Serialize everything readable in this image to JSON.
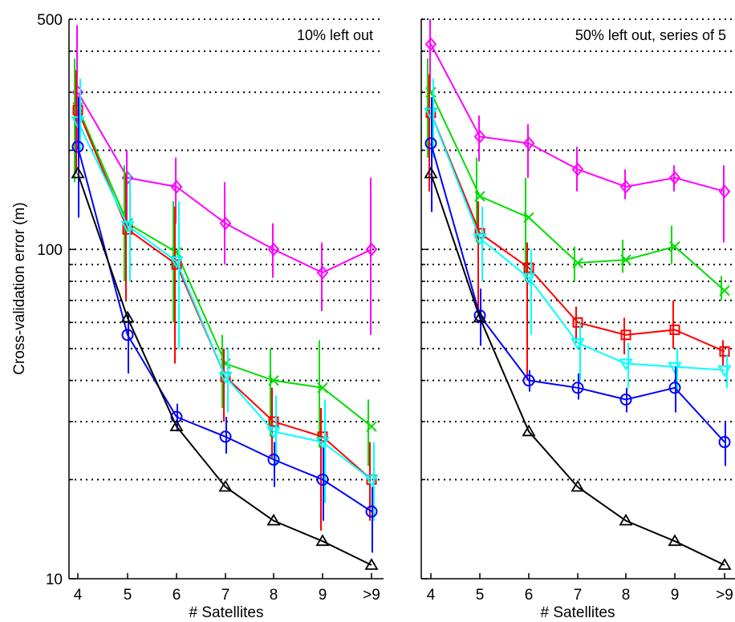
{
  "chart_data": {
    "type": "line",
    "ylabel": "Cross-validation error (m)",
    "xlabel": "# Satellites",
    "yscale": "log",
    "ylim": [
      10,
      500
    ],
    "y_tick_labels": [
      "10",
      "100",
      "500"
    ],
    "categories": [
      "4",
      "5",
      "6",
      "7",
      "8",
      "9",
      ">9"
    ],
    "grid": "horizontal dotted at 10–100 and 100–500 log steps",
    "colors": {
      "magenta": "#ff00ff",
      "green": "#00dd00",
      "red": "#ff0000",
      "cyan": "#00ffff",
      "blue": "#0000ff",
      "black": "#000000"
    },
    "panels": [
      {
        "title": "10% left out",
        "series": [
          {
            "color": "magenta",
            "marker": "diamond",
            "values": [
              300,
              165,
              155,
              120,
              100,
              85,
              100
            ],
            "err_low": [
              200,
              120,
              120,
              90,
              82,
              65,
              55
            ],
            "err_high": [
              480,
              200,
              190,
              160,
              120,
              105,
              165
            ]
          },
          {
            "color": "green",
            "marker": "x",
            "values": [
              270,
              120,
              98,
              45,
              40,
              38,
              29
            ],
            "err_low": [
              160,
              80,
              60,
              33,
              27,
              25,
              22
            ],
            "err_high": [
              380,
              180,
              140,
              55,
              50,
              53,
              35
            ]
          },
          {
            "color": "red",
            "marker": "square",
            "values": [
              265,
              115,
              90,
              41,
              30,
              27,
              20
            ],
            "err_low": [
              170,
              70,
              45,
              30,
              23,
              14,
              15
            ],
            "err_high": [
              350,
              170,
              135,
              50,
              38,
              33,
              26
            ]
          },
          {
            "color": "cyan",
            "marker": "triangle-down",
            "values": [
              245,
              118,
              92,
              41,
              28,
              26,
              20
            ],
            "err_low": [
              200,
              80,
              50,
              32,
              22,
              17,
              15
            ],
            "err_high": [
              330,
              170,
              140,
              50,
              36,
              35,
              26
            ]
          },
          {
            "color": "blue",
            "marker": "circle",
            "values": [
              205,
              55,
              31,
              27,
              23,
              20,
              16
            ],
            "err_low": [
              125,
              42,
              28,
              24,
              19,
              15,
              12
            ],
            "err_high": [
              290,
              64,
              34,
              31,
              26,
              25,
              19
            ]
          },
          {
            "color": "black",
            "marker": "triangle-up",
            "values": [
              170,
              62,
              29,
              19,
              15,
              13,
              11
            ]
          }
        ]
      },
      {
        "title": "50% left out, series of 5",
        "series": [
          {
            "color": "magenta",
            "marker": "diamond",
            "values": [
              420,
              220,
              210,
              175,
              155,
              165,
              150
            ],
            "err_low": [
              300,
              185,
              165,
              150,
              142,
              150,
              105
            ],
            "err_high": [
              500,
              255,
              240,
              205,
              175,
              180,
              180
            ]
          },
          {
            "color": "green",
            "marker": "x",
            "values": [
              300,
              145,
              125,
              91,
              93,
              102,
              75
            ],
            "err_low": [
              190,
              105,
              80,
              80,
              85,
              90,
              70
            ],
            "err_high": [
              380,
              190,
              165,
              102,
              107,
              118,
              83
            ]
          },
          {
            "color": "red",
            "marker": "square",
            "values": [
              260,
              112,
              88,
              60,
              55,
              57,
              49
            ],
            "err_low": [
              150,
              65,
              40,
              52,
              48,
              50,
              44
            ],
            "err_high": [
              340,
              140,
              105,
              67,
              62,
              70,
              53
            ]
          },
          {
            "color": "cyan",
            "marker": "triangle-down",
            "values": [
              260,
              108,
              82,
              52,
              45,
              44,
              43
            ],
            "err_low": [
              190,
              80,
              55,
              40,
              38,
              37,
              38
            ],
            "err_high": [
              330,
              135,
              100,
              60,
              52,
              50,
              48
            ]
          },
          {
            "color": "blue",
            "marker": "circle",
            "values": [
              210,
              63,
              40,
              38,
              35,
              38,
              26
            ],
            "err_low": [
              130,
              51,
              37,
              35,
              32,
              32,
              22
            ],
            "err_high": [
              290,
              76,
              43,
              42,
              38,
              44,
              30
            ]
          },
          {
            "color": "black",
            "marker": "triangle-up",
            "values": [
              170,
              62,
              28,
              19,
              15,
              13,
              11
            ]
          }
        ]
      }
    ]
  }
}
